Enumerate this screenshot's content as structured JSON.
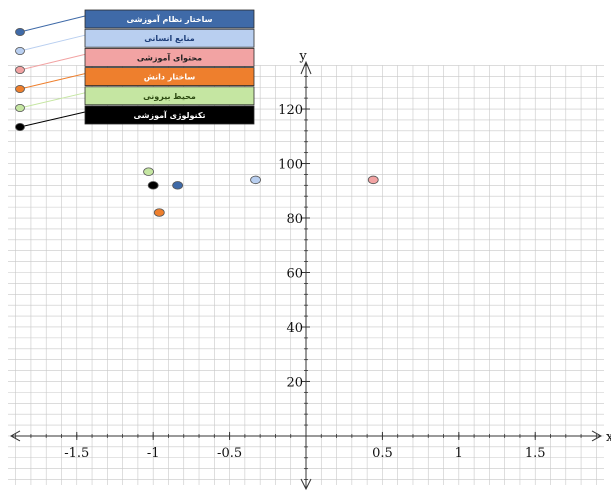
{
  "chart_data": {
    "type": "scatter",
    "xlabel": "x",
    "ylabel": "y",
    "xlim": [
      -1.95,
      1.95
    ],
    "ylim": [
      -18,
      138
    ],
    "x_ticks": [
      -1.5,
      -1,
      -0.5,
      0.5,
      1,
      1.5
    ],
    "x_tick_labels": [
      "-1.5",
      "-1",
      "-0.5",
      "0.5",
      "1",
      "1.5"
    ],
    "y_ticks": [
      20,
      40,
      60,
      80,
      100,
      120
    ],
    "y_tick_labels": [
      "20",
      "40",
      "60",
      "80",
      "100",
      "120"
    ],
    "grid": true,
    "legend_position": "top-left",
    "series": [
      {
        "name": "ساختار نظام آموزشی",
        "color": "#3f6aa8",
        "label_color": "#ffffff",
        "x": -0.84,
        "y": 92
      },
      {
        "name": "منابع انسانی",
        "color": "#b9cff0",
        "label_color": "#1f3f7a",
        "x": -0.33,
        "y": 94
      },
      {
        "name": "محتوای آموزشی",
        "color": "#f2a3a3",
        "label_color": "#222222",
        "x": 0.44,
        "y": 94
      },
      {
        "name": "ساختار دانش",
        "color": "#ee7f2d",
        "label_color": "#ffffff",
        "x": -0.96,
        "y": 82
      },
      {
        "name": "محیط بیرونی",
        "color": "#c5e6a2",
        "label_color": "#2d4a12",
        "x": -1.03,
        "y": 97
      },
      {
        "name": "تکنولوژی آموزشی",
        "color": "#000000",
        "label_color": "#ffffff",
        "x": -1.0,
        "y": 92
      }
    ]
  }
}
